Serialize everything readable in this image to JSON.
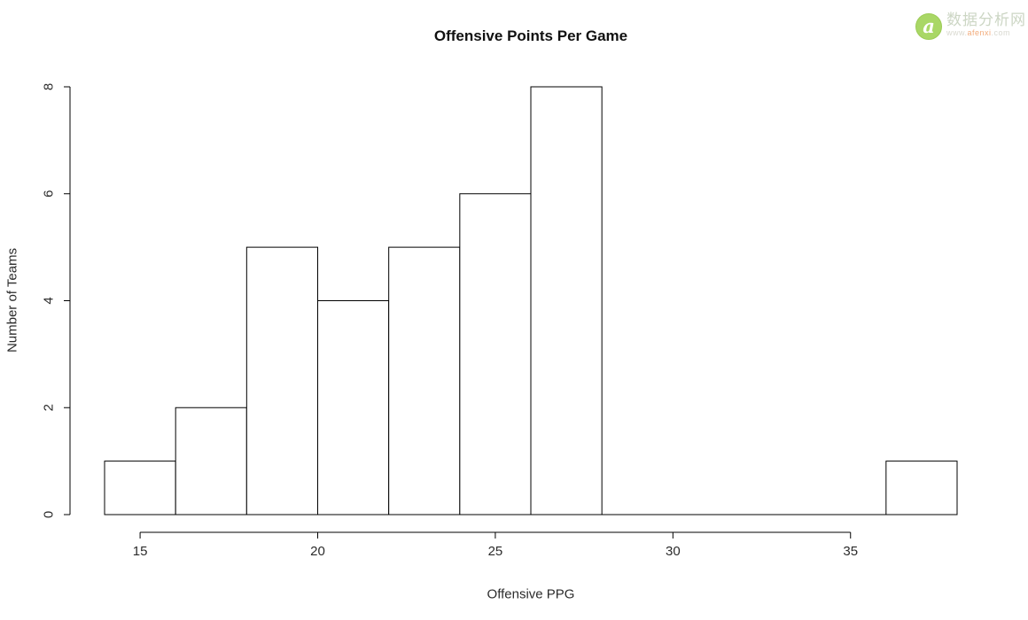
{
  "page": {
    "background": "#ffffff"
  },
  "watermark": {
    "logo_letter": "a",
    "site_name": "数据分析网",
    "url_prefix": "www.",
    "url_name": "afenxi",
    "url_suffix": ".com",
    "logo_color": "#a9d766",
    "name_color": "#ccd6c4",
    "url_highlight_color": "#f2ab7a"
  },
  "chart_data": {
    "type": "bar",
    "subtype": "histogram",
    "title": "Offensive Points Per Game",
    "xlabel": "Offensive PPG",
    "ylabel": "Number of Teams",
    "bin_edges": [
      14,
      16,
      18,
      20,
      22,
      24,
      26,
      28,
      30,
      32,
      34,
      36,
      38
    ],
    "values": [
      1,
      2,
      5,
      4,
      5,
      6,
      8,
      0,
      0,
      0,
      0,
      1
    ],
    "x_ticks": [
      15,
      20,
      25,
      30,
      35
    ],
    "y_ticks": [
      0,
      2,
      4,
      6,
      8
    ],
    "xlim": [
      14,
      38
    ],
    "ylim": [
      0,
      8
    ],
    "grid": false,
    "legend": null,
    "bar_fill": "#ffffff",
    "bar_stroke": "#000000",
    "axis_color": "#000000",
    "tick_label_color": "#2b2b2b"
  }
}
